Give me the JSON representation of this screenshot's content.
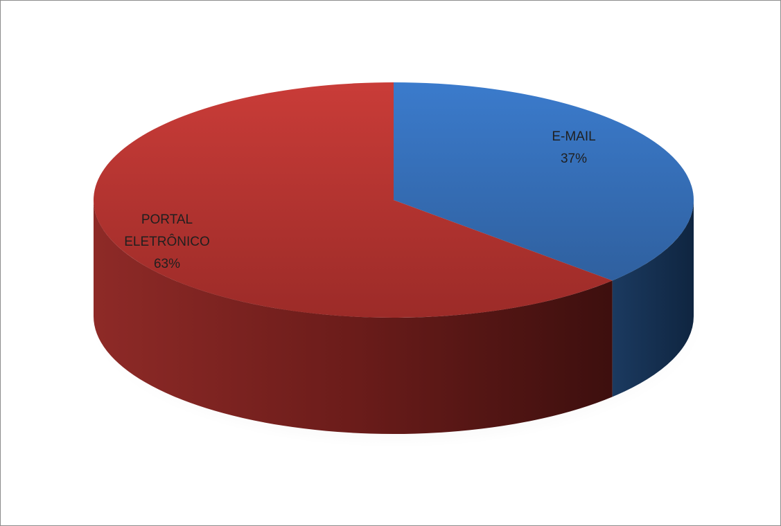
{
  "chart_data": {
    "type": "pie",
    "style": "3d",
    "title": "",
    "legend": "none",
    "slices": [
      {
        "label_lines": [
          "E-MAIL"
        ],
        "percent_label": "37%",
        "value": 37,
        "color": "#3a72be"
      },
      {
        "label_lines": [
          "PORTAL",
          "ELETRÔNICO"
        ],
        "percent_label": "63%",
        "value": 63,
        "color": "#b3322f"
      }
    ]
  }
}
